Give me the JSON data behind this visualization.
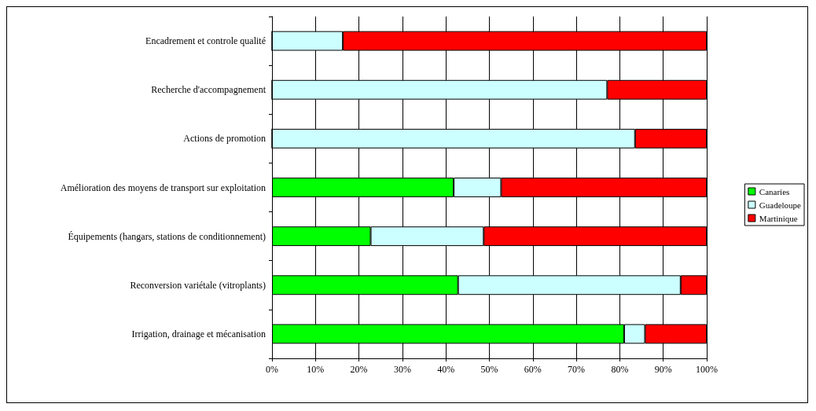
{
  "chart_data": {
    "type": "bar",
    "orientation": "horizontal",
    "stacked": true,
    "categories": [
      "Encadrement et controle qualité",
      "Recherche d'accompagnement",
      "Actions de promotion",
      "Amélioration des moyens de transport sur exploitation",
      "Équipements (hangars, stations de conditionnement)",
      "Reconversion variétale (vitroplants)",
      "Irrigation, drainage et mécanisation"
    ],
    "series": [
      {
        "name": "Canaries",
        "color": "#00ff00",
        "values": [
          0,
          0,
          0,
          41.8,
          22.7,
          42.8,
          81.0
        ]
      },
      {
        "name": "Guadeloupe",
        "color": "#ccffff",
        "values": [
          16.3,
          77.1,
          83.5,
          10.9,
          26.0,
          51.2,
          4.8
        ]
      },
      {
        "name": "Martinique",
        "color": "#ff0000",
        "values": [
          83.7,
          22.9,
          16.5,
          47.3,
          51.3,
          6.0,
          14.2
        ]
      }
    ],
    "xlim": [
      0,
      100
    ],
    "xticks": [
      {
        "value": 0,
        "label": "0%"
      },
      {
        "value": 10,
        "label": "10%"
      },
      {
        "value": 20,
        "label": "20%"
      },
      {
        "value": 30,
        "label": "30%"
      },
      {
        "value": 40,
        "label": "40%"
      },
      {
        "value": 50,
        "label": "50%"
      },
      {
        "value": 60,
        "label": "60%"
      },
      {
        "value": 70,
        "label": "70%"
      },
      {
        "value": 80,
        "label": "80%"
      },
      {
        "value": 90,
        "label": "90%"
      },
      {
        "value": 100,
        "label": "100%"
      }
    ],
    "grid": "x",
    "legend": "right"
  }
}
